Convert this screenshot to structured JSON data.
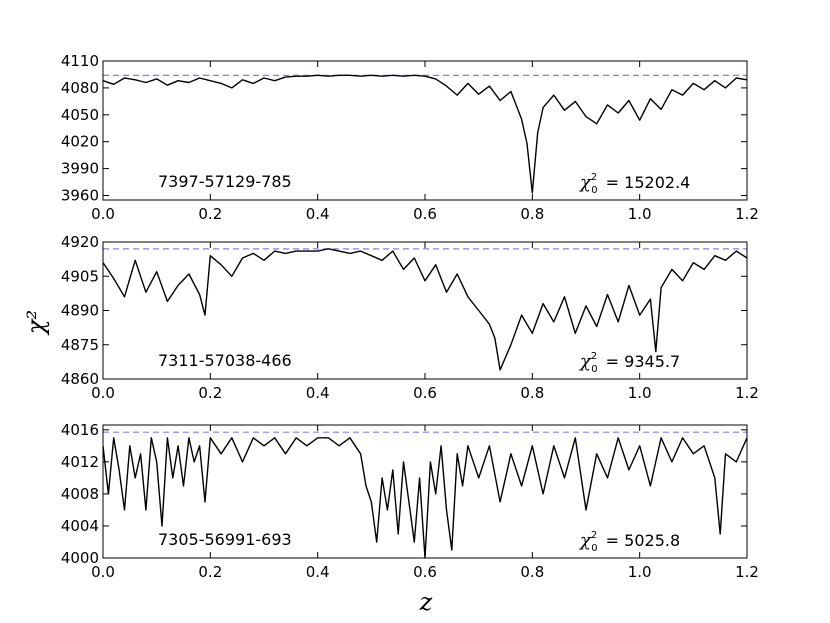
{
  "chart_data": {
    "type": "line",
    "figure": {
      "ylabel": "χ²",
      "xlabel": "z"
    },
    "panels": [
      {
        "label": "7397-57129-785",
        "chi0_value": "15202.4",
        "xlim": [
          0.0,
          1.2
        ],
        "ylim": [
          3955,
          4110
        ],
        "xticks": [
          "0.0",
          "0.2",
          "0.4",
          "0.6",
          "0.8",
          "1.0",
          "1.2"
        ],
        "yticks": [
          3960,
          3990,
          4020,
          4050,
          4080,
          4110
        ],
        "reference_line": 4094,
        "series": {
          "z": [
            0.0,
            0.02,
            0.04,
            0.06,
            0.08,
            0.1,
            0.12,
            0.14,
            0.16,
            0.18,
            0.2,
            0.22,
            0.24,
            0.26,
            0.28,
            0.3,
            0.32,
            0.34,
            0.36,
            0.38,
            0.4,
            0.42,
            0.44,
            0.46,
            0.48,
            0.5,
            0.52,
            0.54,
            0.56,
            0.58,
            0.6,
            0.62,
            0.64,
            0.66,
            0.68,
            0.7,
            0.72,
            0.74,
            0.76,
            0.78,
            0.79,
            0.8,
            0.81,
            0.82,
            0.84,
            0.86,
            0.88,
            0.9,
            0.92,
            0.94,
            0.96,
            0.98,
            1.0,
            1.02,
            1.04,
            1.06,
            1.08,
            1.1,
            1.12,
            1.14,
            1.16,
            1.18,
            1.2
          ],
          "chi2": [
            4088,
            4084,
            4091,
            4089,
            4086,
            4090,
            4083,
            4088,
            4086,
            4091,
            4088,
            4085,
            4080,
            4089,
            4085,
            4091,
            4088,
            4092,
            4093,
            4093,
            4094,
            4093,
            4094,
            4094,
            4093,
            4094,
            4093,
            4094,
            4093,
            4094,
            4093,
            4090,
            4082,
            4072,
            4085,
            4073,
            4082,
            4066,
            4076,
            4045,
            4018,
            3963,
            4030,
            4058,
            4072,
            4055,
            4065,
            4048,
            4040,
            4061,
            4052,
            4066,
            4044,
            4068,
            4056,
            4078,
            4072,
            4085,
            4078,
            4088,
            4080,
            4091,
            4089
          ]
        }
      },
      {
        "label": "7311-57038-466",
        "chi0_value": "9345.7",
        "xlim": [
          0.0,
          1.2
        ],
        "ylim": [
          4860,
          4920
        ],
        "xticks": [
          "0.0",
          "0.2",
          "0.4",
          "0.6",
          "0.8",
          "1.0",
          "1.2"
        ],
        "yticks": [
          4860,
          4875,
          4890,
          4905,
          4920
        ],
        "reference_line": 4917,
        "series": {
          "z": [
            0.0,
            0.02,
            0.04,
            0.06,
            0.08,
            0.1,
            0.12,
            0.14,
            0.16,
            0.18,
            0.19,
            0.2,
            0.22,
            0.24,
            0.26,
            0.28,
            0.3,
            0.32,
            0.34,
            0.36,
            0.38,
            0.4,
            0.42,
            0.44,
            0.46,
            0.48,
            0.5,
            0.52,
            0.54,
            0.56,
            0.58,
            0.6,
            0.62,
            0.64,
            0.66,
            0.68,
            0.7,
            0.72,
            0.73,
            0.74,
            0.76,
            0.78,
            0.8,
            0.82,
            0.84,
            0.86,
            0.88,
            0.9,
            0.92,
            0.94,
            0.96,
            0.98,
            1.0,
            1.02,
            1.03,
            1.04,
            1.06,
            1.08,
            1.1,
            1.12,
            1.14,
            1.16,
            1.18,
            1.2
          ],
          "chi2": [
            4911,
            4904,
            4896,
            4912,
            4898,
            4907,
            4894,
            4901,
            4906,
            4897,
            4888,
            4914,
            4910,
            4905,
            4913,
            4915,
            4912,
            4916,
            4915,
            4916,
            4916,
            4916,
            4917,
            4916,
            4915,
            4916,
            4914,
            4912,
            4916,
            4908,
            4913,
            4903,
            4910,
            4898,
            4906,
            4896,
            4890,
            4884,
            4878,
            4864,
            4875,
            4888,
            4880,
            4893,
            4885,
            4896,
            4880,
            4892,
            4883,
            4897,
            4885,
            4901,
            4888,
            4895,
            4872,
            4900,
            4908,
            4903,
            4911,
            4908,
            4914,
            4912,
            4916,
            4913
          ]
        }
      },
      {
        "label": "7305-56991-693",
        "chi0_value": "5025.8",
        "xlim": [
          0.0,
          1.2
        ],
        "ylim": [
          4000,
          4016.6
        ],
        "xticks": [
          "0.0",
          "0.2",
          "0.4",
          "0.6",
          "0.8",
          "1.0",
          "1.2"
        ],
        "yticks": [
          4000,
          4004,
          4008,
          4012,
          4016
        ],
        "reference_line": 4015.7,
        "series": {
          "z": [
            0.0,
            0.01,
            0.02,
            0.03,
            0.04,
            0.05,
            0.06,
            0.07,
            0.08,
            0.09,
            0.1,
            0.11,
            0.12,
            0.13,
            0.14,
            0.15,
            0.16,
            0.17,
            0.18,
            0.19,
            0.2,
            0.22,
            0.24,
            0.26,
            0.28,
            0.3,
            0.32,
            0.34,
            0.36,
            0.38,
            0.4,
            0.42,
            0.44,
            0.46,
            0.48,
            0.49,
            0.5,
            0.51,
            0.52,
            0.53,
            0.54,
            0.55,
            0.56,
            0.57,
            0.58,
            0.59,
            0.6,
            0.61,
            0.62,
            0.63,
            0.64,
            0.65,
            0.66,
            0.67,
            0.68,
            0.7,
            0.72,
            0.74,
            0.76,
            0.78,
            0.8,
            0.82,
            0.84,
            0.86,
            0.88,
            0.9,
            0.92,
            0.94,
            0.96,
            0.98,
            1.0,
            1.02,
            1.04,
            1.06,
            1.08,
            1.1,
            1.12,
            1.14,
            1.15,
            1.16,
            1.18,
            1.2
          ],
          "chi2": [
            4014,
            4008,
            4015,
            4011,
            4006,
            4014,
            4010,
            4013,
            4006,
            4015,
            4012,
            4004,
            4015,
            4010,
            4014,
            4009,
            4015,
            4012,
            4014,
            4007,
            4015,
            4013,
            4015,
            4012,
            4015,
            4014,
            4015,
            4013,
            4015,
            4014,
            4015,
            4015,
            4014,
            4015,
            4013,
            4009,
            4007,
            4002,
            4010,
            4006,
            4011,
            4003,
            4012,
            4007,
            4002,
            4010,
            4000,
            4012,
            4008,
            4014,
            4006,
            4001,
            4013,
            4009,
            4014,
            4010,
            4014,
            4007,
            4013,
            4009,
            4014,
            4008,
            4014,
            4010,
            4015,
            4006,
            4013,
            4010,
            4015,
            4011,
            4014,
            4009,
            4015,
            4012,
            4015,
            4013,
            4014,
            4010,
            4003,
            4013,
            4012,
            4015
          ]
        }
      }
    ],
    "colors": {
      "series": "#000000",
      "reference": "#8080f0"
    }
  }
}
